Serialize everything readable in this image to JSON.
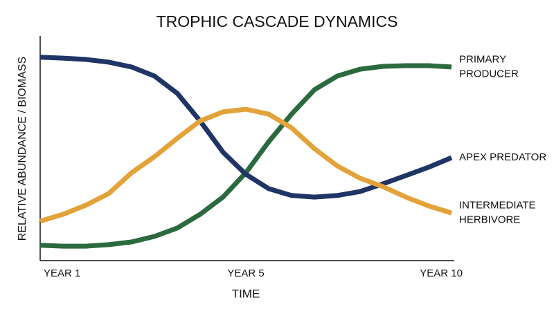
{
  "chart_data": {
    "type": "line",
    "title": "TROPHIC CASCADE DYNAMICS",
    "xlabel": "TIME",
    "ylabel": "RELATIVE ABUNDANCE / BIOMASS",
    "x": [
      1,
      1.5,
      2,
      2.5,
      3,
      3.5,
      4,
      4.5,
      5,
      5.5,
      6,
      6.5,
      7,
      7.5,
      8,
      8.5,
      9,
      9.5,
      10
    ],
    "xlim": [
      1,
      10
    ],
    "xticks": [
      {
        "value": 1,
        "label": "YEAR 1"
      },
      {
        "value": 5,
        "label": "YEAR 5"
      },
      {
        "value": 10,
        "label": "YEAR 10"
      }
    ],
    "ylim": [
      0,
      100
    ],
    "series": [
      {
        "name": "PRIMARY\nPRODUCER",
        "color": "#2b6a3f",
        "values": [
          6.3,
          5.9,
          5.9,
          6.6,
          7.8,
          10.3,
          14.1,
          20.3,
          28.1,
          39.1,
          53.1,
          65.6,
          76.6,
          82.8,
          85.9,
          87.2,
          87.5,
          87.5,
          86.9
        ]
      },
      {
        "name": "APEX PREDATOR",
        "color": "#1f3566",
        "values": [
          91.3,
          90.9,
          90.3,
          89.1,
          86.9,
          82.8,
          75,
          62.5,
          48.4,
          38.4,
          31.9,
          28.8,
          28.1,
          28.8,
          30.6,
          34.1,
          37.8,
          41.6,
          45.9
        ]
      },
      {
        "name": "INTERMEDIATE\nHERBIVORE",
        "color": "#e3a33a",
        "values": [
          17.2,
          20.3,
          24.4,
          29.7,
          39.1,
          46.3,
          54.7,
          62.5,
          66.6,
          67.8,
          65.6,
          59.4,
          50,
          42.2,
          36.6,
          32.8,
          28.1,
          24.1,
          20.9
        ]
      }
    ]
  }
}
